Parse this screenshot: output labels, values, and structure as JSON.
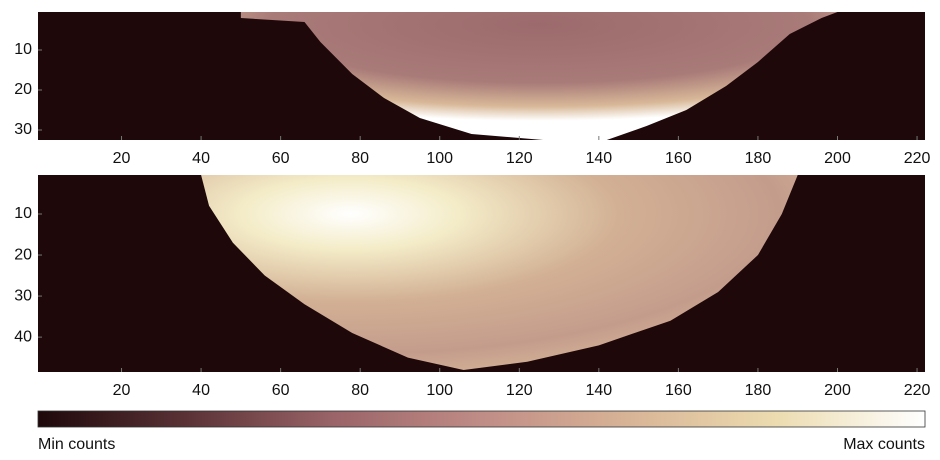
{
  "chart_data": [
    {
      "type": "heatmap",
      "xlim": [
        -1,
        222
      ],
      "ylim": [
        0.5,
        32.5
      ],
      "xticks": [
        20,
        40,
        60,
        80,
        100,
        120,
        140,
        160,
        180,
        200,
        220
      ],
      "yticks": [
        10,
        20,
        30
      ]
    },
    {
      "type": "heatmap",
      "xlim": [
        -1,
        222
      ],
      "ylim": [
        0.5,
        48.5
      ],
      "xticks": [
        20,
        40,
        60,
        80,
        100,
        120,
        140,
        160,
        180,
        200,
        220
      ],
      "yticks": [
        10,
        20,
        30,
        40
      ]
    }
  ],
  "colorbar": {
    "min_label": "Min counts",
    "max_label": "Max counts",
    "colormap": [
      "#1e080a",
      "#5a3236",
      "#9a6468",
      "#c08c86",
      "#d8b496",
      "#ecdcb0",
      "#ffffff"
    ]
  }
}
